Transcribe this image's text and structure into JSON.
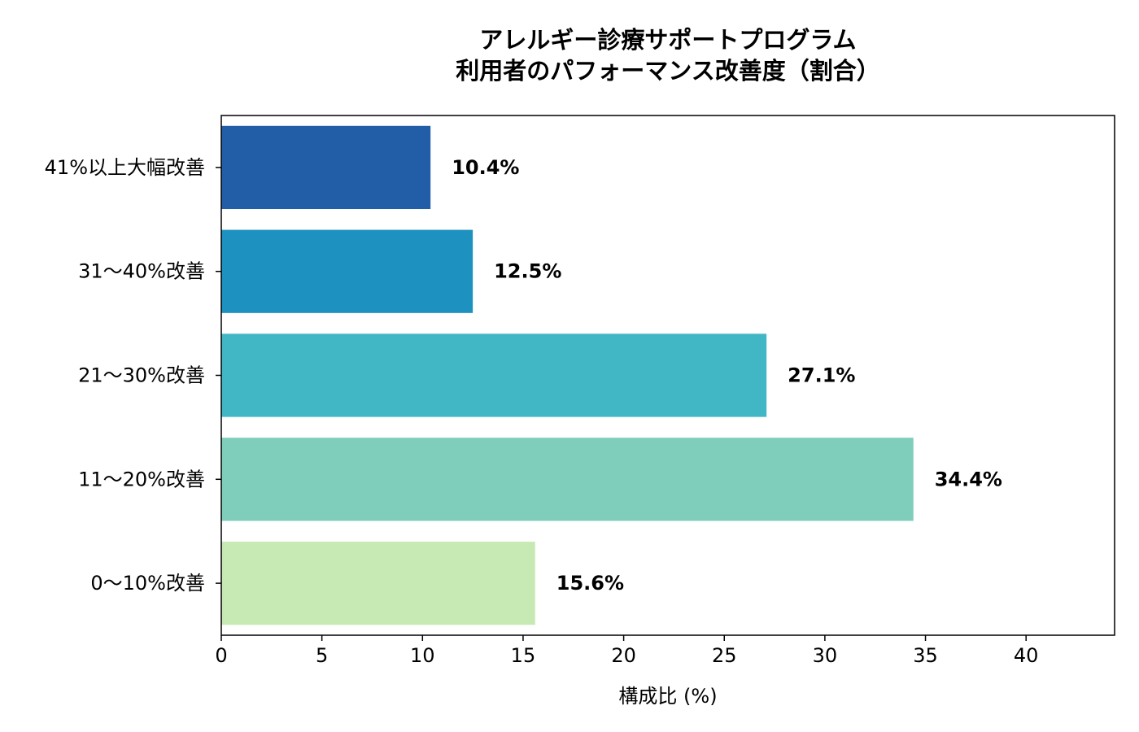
{
  "chart_data": {
    "type": "bar",
    "orientation": "horizontal",
    "title_lines": [
      "アレルギー診療サポートプログラム",
      "利用者のパフォーマンス改善度（割合）"
    ],
    "xlabel": "構成比 (%)",
    "ylabel": "",
    "categories": [
      "41%以上大幅改善",
      "31〜40%改善",
      "21〜30%改善",
      "11〜20%改善",
      "0〜10%改善"
    ],
    "values": [
      10.4,
      12.5,
      27.1,
      34.4,
      15.6
    ],
    "data_labels": [
      "10.4%",
      "12.5%",
      "27.1%",
      "34.4%",
      "15.6%"
    ],
    "colors": [
      "#225ea8",
      "#1d91c0",
      "#41b6c4",
      "#7fcdbb",
      "#c7e9b4"
    ],
    "xlim": [
      0,
      44.4
    ],
    "xticks": [
      0,
      5,
      10,
      15,
      20,
      25,
      30,
      35,
      40
    ],
    "grid": false,
    "legend": false
  }
}
